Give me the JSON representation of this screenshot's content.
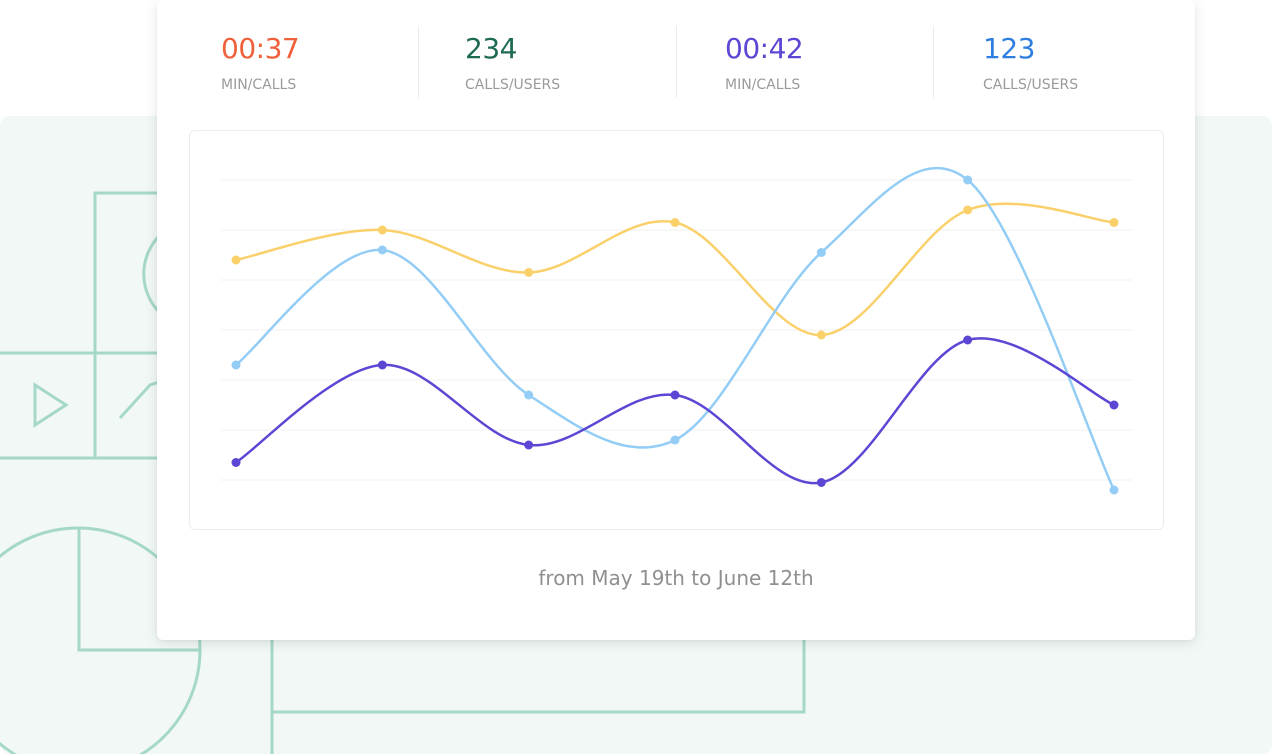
{
  "stats": [
    {
      "value": "00:37",
      "label": "MIN/CALLS",
      "color": "#f0603a"
    },
    {
      "value": "234",
      "label": "CALLS/USERS",
      "color": "#1e6b55"
    },
    {
      "value": "00:42",
      "label": "MIN/CALLS",
      "color": "#5b47d4"
    },
    {
      "value": "123",
      "label": "CALLS/USERS",
      "color": "#2f7fe0"
    }
  ],
  "date_range": "from May 19th to June 12th",
  "chart_data": {
    "type": "line",
    "smooth": true,
    "grid": true,
    "gridlines": 7,
    "ylim": [
      0,
      6
    ],
    "x": [
      1,
      2,
      3,
      4,
      5,
      6,
      7
    ],
    "series": [
      {
        "color": "#fad06b",
        "values": [
          4.4,
          5.0,
          4.15,
          5.15,
          2.9,
          5.4,
          5.15
        ]
      },
      {
        "color": "#93cdf6",
        "values": [
          2.3,
          4.6,
          1.7,
          0.8,
          4.55,
          6.0,
          -0.2
        ]
      },
      {
        "color": "#5b47d4",
        "values": [
          0.35,
          2.3,
          0.7,
          1.7,
          -0.05,
          2.8,
          1.5
        ]
      }
    ]
  }
}
